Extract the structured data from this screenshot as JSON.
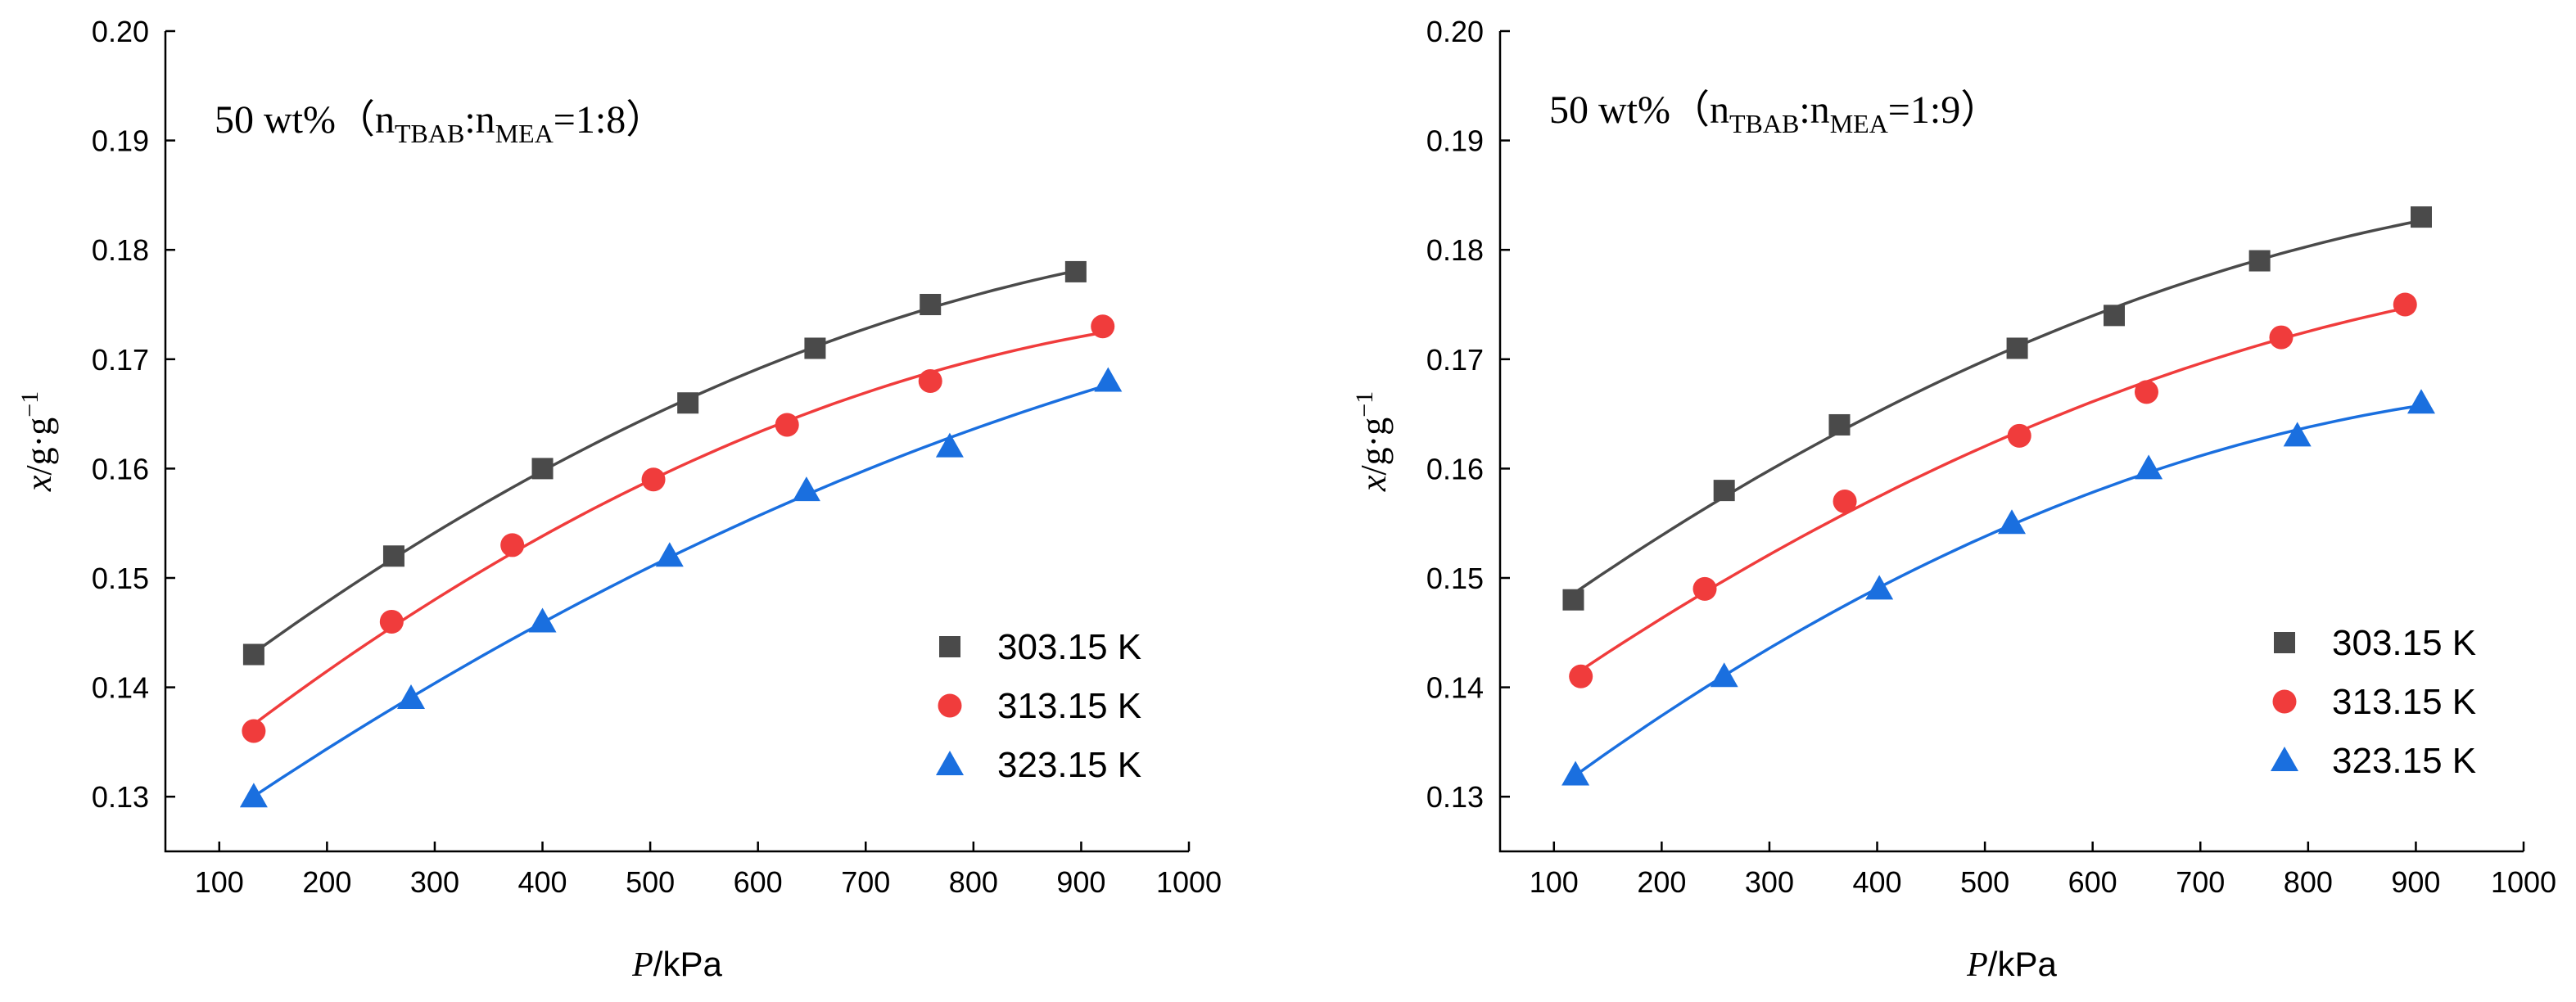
{
  "chart_data": [
    {
      "type": "scatter",
      "title": {
        "prefix": "50 wt%（n",
        "sub1": "TBAB",
        "mid": ":n",
        "sub2": "MEA",
        "suffix": "=1:8）"
      },
      "xlabel": {
        "var": "P",
        "unit": "/kPa"
      },
      "ylabel": {
        "var": "x",
        "unit": "/g·g",
        "exp": "−1"
      },
      "xlim": [
        50,
        1000
      ],
      "ylim": [
        0.125,
        0.2
      ],
      "xticks": [
        100,
        200,
        300,
        400,
        500,
        600,
        700,
        800,
        900,
        1000
      ],
      "yticks": [
        0.13,
        0.14,
        0.15,
        0.16,
        0.17,
        0.18,
        0.19,
        0.2
      ],
      "ytick_labels": [
        "0.13",
        "0.14",
        "0.15",
        "0.16",
        "0.17",
        "0.18",
        "0.19",
        "0.20"
      ],
      "legend_position": "bottom-right",
      "series": [
        {
          "name": "303.15 K",
          "marker": "square",
          "color": "#4a4a4a",
          "x": [
            132,
            262,
            400,
            535,
            653,
            760,
            895
          ],
          "y": [
            0.143,
            0.152,
            0.16,
            0.166,
            0.171,
            0.175,
            0.178
          ]
        },
        {
          "name": "313.15 K",
          "marker": "circle",
          "color": "#f03c3c",
          "x": [
            132,
            260,
            372,
            503,
            627,
            760,
            920
          ],
          "y": [
            0.136,
            0.146,
            0.153,
            0.159,
            0.164,
            0.168,
            0.173
          ]
        },
        {
          "name": "323.15 K",
          "marker": "triangle",
          "color": "#1a6fdf",
          "x": [
            132,
            278,
            400,
            518,
            645,
            778,
            925
          ],
          "y": [
            0.13,
            0.139,
            0.146,
            0.152,
            0.158,
            0.162,
            0.168
          ]
        }
      ]
    },
    {
      "type": "scatter",
      "title": {
        "prefix": "50 wt%（n",
        "sub1": "TBAB",
        "mid": ":n",
        "sub2": "MEA",
        "suffix": "=1:9）"
      },
      "xlabel": {
        "var": "P",
        "unit": "/kPa"
      },
      "ylabel": {
        "var": "x",
        "unit": "/g·g",
        "exp": "−1"
      },
      "xlim": [
        50,
        1000
      ],
      "ylim": [
        0.125,
        0.2
      ],
      "xticks": [
        100,
        200,
        300,
        400,
        500,
        600,
        700,
        800,
        900,
        1000
      ],
      "yticks": [
        0.13,
        0.14,
        0.15,
        0.16,
        0.17,
        0.18,
        0.19,
        0.2
      ],
      "ytick_labels": [
        "0.13",
        "0.14",
        "0.15",
        "0.16",
        "0.17",
        "0.18",
        "0.19",
        "0.20"
      ],
      "legend_position": "bottom-right",
      "series": [
        {
          "name": "303.15 K",
          "marker": "square",
          "color": "#4a4a4a",
          "x": [
            118,
            258,
            365,
            530,
            620,
            755,
            905
          ],
          "y": [
            0.148,
            0.158,
            0.164,
            0.171,
            0.174,
            0.179,
            0.183
          ]
        },
        {
          "name": "313.15 K",
          "marker": "circle",
          "color": "#f03c3c",
          "x": [
            125,
            240,
            370,
            532,
            650,
            775,
            890
          ],
          "y": [
            0.141,
            0.149,
            0.157,
            0.163,
            0.167,
            0.172,
            0.175
          ]
        },
        {
          "name": "323.15 K",
          "marker": "triangle",
          "color": "#1a6fdf",
          "x": [
            120,
            258,
            402,
            525,
            652,
            790,
            905
          ],
          "y": [
            0.132,
            0.141,
            0.149,
            0.155,
            0.16,
            0.163,
            0.166
          ]
        }
      ]
    }
  ]
}
